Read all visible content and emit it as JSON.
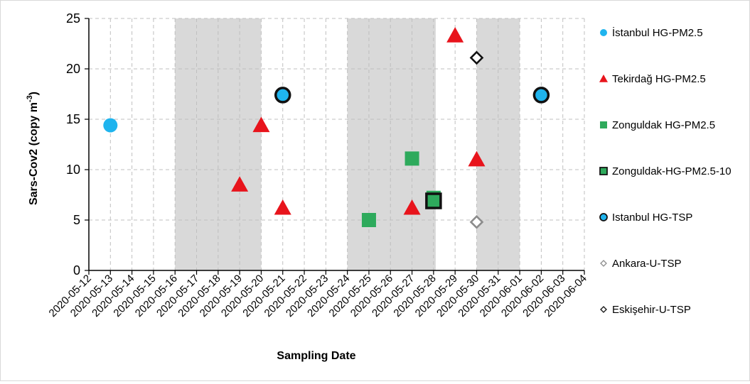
{
  "chart_data": {
    "type": "scatter",
    "xlabel": "Sampling Date",
    "ylabel": "Sars-Cov2 (copy m",
    "ylabel_superscript": "-3",
    "ylabel_close": ")",
    "xlim": [
      "2020-05-12",
      "2020-06-04"
    ],
    "ylim": [
      0,
      25
    ],
    "y_ticks": [
      0,
      5,
      10,
      15,
      20,
      25
    ],
    "x_ticks": [
      "2020-05-12",
      "2020-05-13",
      "2020-05-14",
      "2020-05-15",
      "2020-05-16",
      "2020-05-17",
      "2020-05-18",
      "2020-05-19",
      "2020-05-20",
      "2020-05-21",
      "2020-05-22",
      "2020-05-23",
      "2020-05-24",
      "2020-05-25",
      "2020-05-26",
      "2020-05-27",
      "2020-05-28",
      "2020-05-29",
      "2020-05-30",
      "2020-05-31",
      "2020-06-01",
      "2020-06-02",
      "2020-06-03",
      "2020-06-04"
    ],
    "grid": true,
    "legend_position": "right",
    "shaded_periods": [
      {
        "start": "2020-05-16",
        "end": "2020-05-20"
      },
      {
        "start": "2020-05-24",
        "end": "2020-05-28.1"
      },
      {
        "start": "2020-05-30",
        "end": "2020-06-01"
      }
    ],
    "series": [
      {
        "name": "İstanbul HG-PM2.5",
        "marker": "circle",
        "color": "#1FB4EE",
        "edge": "none",
        "points": [
          {
            "x": "2020-05-13",
            "y": 14.4
          }
        ]
      },
      {
        "name": "Tekirdağ HG-PM2.5",
        "marker": "triangle",
        "color": "#E8141C",
        "edge": "none",
        "points": [
          {
            "x": "2020-05-19",
            "y": 8.5
          },
          {
            "x": "2020-05-20",
            "y": 14.4
          },
          {
            "x": "2020-05-21",
            "y": 6.2
          },
          {
            "x": "2020-05-27",
            "y": 6.2
          },
          {
            "x": "2020-05-29",
            "y": 23.3
          },
          {
            "x": "2020-05-30",
            "y": 11.0
          }
        ]
      },
      {
        "name": "Zonguldak HG-PM2.5",
        "marker": "square",
        "color": "#2EAA5C",
        "edge": "none",
        "points": [
          {
            "x": "2020-05-25",
            "y": 5.0
          },
          {
            "x": "2020-05-27",
            "y": 11.1
          },
          {
            "x": "2020-05-28",
            "y": 7.2
          }
        ]
      },
      {
        "name": "Zonguldak-HG-PM2.5-10",
        "marker": "square",
        "color": "#2EAA5C",
        "edge": "#111111",
        "points": [
          {
            "x": "2020-05-28",
            "y": 6.9
          }
        ]
      },
      {
        "name": "Istanbul HG-TSP",
        "marker": "circle",
        "color": "#1FB4EE",
        "edge": "#111111",
        "points": [
          {
            "x": "2020-05-21",
            "y": 17.4
          },
          {
            "x": "2020-06-02",
            "y": 17.4
          }
        ]
      },
      {
        "name": "Ankara-U-TSP",
        "marker": "diamond",
        "color": "#ffffff",
        "edge": "#8C8C8C",
        "points": [
          {
            "x": "2020-05-30",
            "y": 4.8
          }
        ]
      },
      {
        "name": "Eskişehir-U-TSP",
        "marker": "diamond",
        "color": "#ffffff",
        "edge": "#111111",
        "points": [
          {
            "x": "2020-05-30",
            "y": 21.1
          }
        ]
      }
    ]
  }
}
